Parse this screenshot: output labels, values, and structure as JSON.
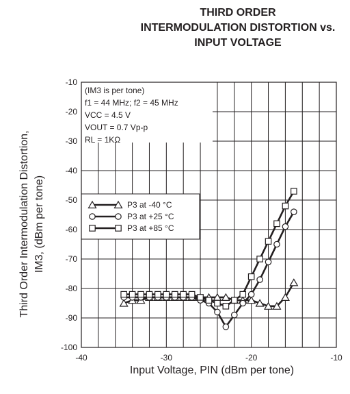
{
  "title_lines": [
    "THIRD ORDER",
    "INTERMODULATION DISTORTION vs.",
    "INPUT VOLTAGE"
  ],
  "ylabel_lines": [
    "Third Order Intermodulation Distortion,",
    "IM3, (dBm per tone)"
  ],
  "xlabel": "Input Voltage, PIN (dBm per tone)",
  "conditions": [
    "(IM3 is per tone)",
    "f1 = 44 MHz; f2 = 45 MHz",
    "VCC = 4.5 V",
    "VOUT = 0.7 Vp-p",
    "RL = 1KΩ"
  ],
  "chart_data": {
    "type": "line",
    "title": "THIRD ORDER INTERMODULATION DISTORTION vs. INPUT VOLTAGE",
    "xlabel": "Input Voltage, PIN (dBm per tone)",
    "ylabel": "Third Order Intermodulation Distortion, IM3, (dBm per tone)",
    "xlim": [
      -40,
      -10
    ],
    "ylim": [
      -100,
      -10
    ],
    "xticks": [
      -40,
      -30,
      -20,
      -10
    ],
    "yticks": [
      -100,
      -90,
      -80,
      -70,
      -60,
      -50,
      -40,
      -30,
      -20,
      -10
    ],
    "grid": true,
    "legend_position": "left",
    "series": [
      {
        "name": "P3 at -40 °C",
        "marker": "triangle",
        "x": [
          -35,
          -34,
          -33,
          -32,
          -31,
          -30,
          -29,
          -28,
          -27,
          -26,
          -25,
          -24,
          -23,
          -22,
          -21,
          -20,
          -19,
          -18,
          -17,
          -16,
          -15
        ],
        "y": [
          -85,
          -84,
          -84,
          -83,
          -83,
          -83,
          -83,
          -83,
          -83,
          -83,
          -83,
          -83,
          -83,
          -84,
          -84,
          -84,
          -85,
          -86,
          -86,
          -83,
          -78
        ]
      },
      {
        "name": "P3 at +25 °C",
        "marker": "circle",
        "x": [
          -35,
          -34,
          -33,
          -32,
          -31,
          -30,
          -29,
          -28,
          -27,
          -26,
          -25,
          -24,
          -23,
          -22,
          -21,
          -20,
          -19,
          -18,
          -17,
          -16,
          -15
        ],
        "y": [
          -83,
          -83,
          -83,
          -83,
          -83,
          -83,
          -83,
          -83,
          -83,
          -84,
          -85,
          -88,
          -93,
          -89,
          -85,
          -82,
          -77,
          -71,
          -65,
          -59,
          -54
        ]
      },
      {
        "name": "P3 at +85 °C",
        "marker": "square",
        "x": [
          -35,
          -34,
          -33,
          -32,
          -31,
          -30,
          -29,
          -28,
          -27,
          -26,
          -25,
          -24,
          -23,
          -22,
          -21,
          -20,
          -19,
          -18,
          -17,
          -16,
          -15
        ],
        "y": [
          -82,
          -82,
          -82,
          -82,
          -82,
          -82,
          -82,
          -82,
          -82,
          -83,
          -84,
          -85,
          -86,
          -84,
          -82,
          -76,
          -70,
          -64,
          -58,
          -52,
          -47
        ]
      }
    ]
  }
}
